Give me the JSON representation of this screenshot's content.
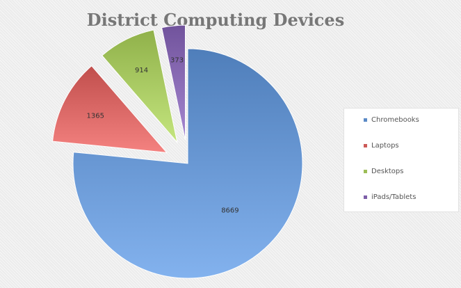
{
  "chart_data": {
    "type": "pie",
    "title": "District Computing Devices",
    "slices": [
      {
        "label": "Chromebooks",
        "value": 8669,
        "color": "#5b8ac6",
        "exploded": false
      },
      {
        "label": "Laptops",
        "value": 1365,
        "color": "#cc5a58",
        "exploded": true
      },
      {
        "label": "Desktops",
        "value": 914,
        "color": "#9cbd56",
        "exploded": true
      },
      {
        "label": "iPads/Tablets",
        "value": 373,
        "color": "#7d5fa8",
        "exploded": true
      }
    ],
    "legend": "right",
    "data_labels": true
  }
}
